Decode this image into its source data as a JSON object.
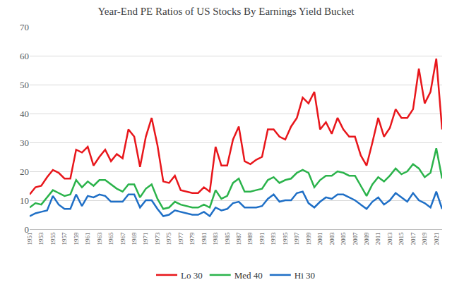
{
  "chart_data": {
    "type": "line",
    "title": "Year-End PE Ratios of US Stocks By Earnings Yield Bucket",
    "x": [
      1951,
      1952,
      1953,
      1954,
      1955,
      1956,
      1957,
      1958,
      1959,
      1960,
      1961,
      1962,
      1963,
      1964,
      1965,
      1966,
      1967,
      1968,
      1969,
      1970,
      1971,
      1972,
      1973,
      1974,
      1975,
      1976,
      1977,
      1978,
      1979,
      1980,
      1981,
      1982,
      1983,
      1984,
      1985,
      1986,
      1987,
      1988,
      1989,
      1990,
      1991,
      1992,
      1993,
      1994,
      1995,
      1996,
      1997,
      1998,
      1999,
      2000,
      2001,
      2002,
      2003,
      2004,
      2005,
      2006,
      2007,
      2008,
      2009,
      2010,
      2011,
      2012,
      2013,
      2014,
      2015,
      2016,
      2017,
      2018,
      2019,
      2020,
      2021,
      2022
    ],
    "series": [
      {
        "name": "Lo 30",
        "color": "#e8161b",
        "values": [
          12,
          14.5,
          15,
          18,
          20.5,
          19.5,
          17.5,
          17.5,
          27.5,
          26.5,
          28.5,
          22,
          25,
          27.5,
          23.5,
          26,
          24.5,
          34.5,
          32,
          21.5,
          32,
          38.5,
          29,
          16.5,
          16,
          18.5,
          13.5,
          13,
          12.5,
          12.5,
          14.5,
          13,
          28.5,
          22,
          22,
          31,
          35.5,
          23.5,
          22.5,
          24,
          25,
          34.5,
          34.5,
          32,
          31,
          35.5,
          38.5,
          45.5,
          43.5,
          47.5,
          34.5,
          37,
          33,
          38.5,
          34.5,
          32,
          32,
          25.5,
          22,
          30,
          38.5,
          32,
          35,
          41.5,
          38.5,
          38.5,
          41.5,
          55.5,
          43.5,
          47.5,
          59,
          34.5
        ]
      },
      {
        "name": "Med 40",
        "color": "#2bb34b",
        "values": [
          7.5,
          9,
          8.5,
          11,
          13.5,
          12.5,
          11.5,
          12,
          17,
          14.5,
          16.5,
          15,
          17,
          17,
          15.5,
          14,
          13,
          15.5,
          15.5,
          11,
          14,
          15.5,
          10.5,
          7,
          7.5,
          9.5,
          8.5,
          8,
          7.5,
          7.5,
          8.5,
          7.5,
          13.5,
          10.5,
          11.5,
          16,
          17.5,
          13,
          13,
          13.5,
          14,
          17,
          18,
          16,
          17,
          17.5,
          19.5,
          20.5,
          19.5,
          14.5,
          17,
          18.5,
          18.5,
          20,
          19.5,
          18.5,
          18.5,
          15,
          11.5,
          15.5,
          18,
          16.5,
          18.5,
          21,
          19,
          20,
          22.5,
          21,
          18,
          19.5,
          28,
          17.5
        ]
      },
      {
        "name": "Hi 30",
        "color": "#1f6fc6",
        "values": [
          4.5,
          5.5,
          6,
          6.5,
          11.5,
          8.5,
          7,
          7,
          12,
          8,
          11.5,
          11,
          12,
          11.5,
          9.5,
          9.5,
          9.5,
          12,
          12,
          7.5,
          10,
          10,
          7,
          4.5,
          5,
          6.5,
          6,
          5.5,
          5,
          5,
          6,
          4.5,
          7.5,
          6.5,
          7,
          9,
          9.5,
          7.5,
          7.5,
          7.5,
          8,
          10.5,
          12,
          9.5,
          10,
          10,
          12.5,
          13,
          9,
          7.5,
          9.5,
          11,
          10.5,
          12,
          12,
          11,
          10,
          8.5,
          7,
          9.5,
          11,
          8.5,
          10,
          12.5,
          11,
          9.5,
          12.5,
          10,
          9,
          7.5,
          13,
          7
        ]
      }
    ],
    "xlim": [
      1951,
      2022
    ],
    "xticks": [
      1951,
      1953,
      1955,
      1957,
      1959,
      1961,
      1963,
      1965,
      1967,
      1969,
      1971,
      1973,
      1975,
      1977,
      1979,
      1981,
      1983,
      1985,
      1987,
      1989,
      1991,
      1993,
      1995,
      1997,
      1999,
      2001,
      2003,
      2005,
      2007,
      2009,
      2011,
      2013,
      2015,
      2017,
      2019,
      2021
    ],
    "ylim": [
      0,
      70
    ],
    "yticks": [
      0,
      10,
      20,
      30,
      40,
      50,
      60,
      70
    ],
    "grid": true,
    "legend": "bottom"
  }
}
